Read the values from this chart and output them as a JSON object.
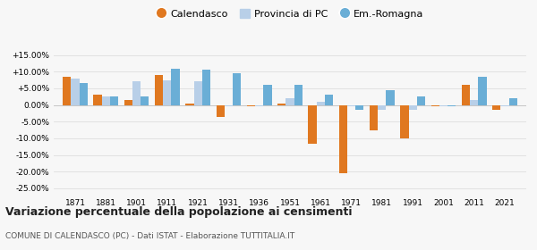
{
  "years": [
    1871,
    1881,
    1901,
    1911,
    1921,
    1931,
    1936,
    1951,
    1961,
    1971,
    1981,
    1991,
    2001,
    2011,
    2021
  ],
  "calendasco": [
    8.5,
    3.0,
    1.5,
    9.0,
    0.5,
    -3.5,
    -0.5,
    0.5,
    -11.5,
    -20.5,
    -7.5,
    -10.0,
    -0.5,
    6.0,
    -1.5
  ],
  "provincia_pc": [
    8.0,
    2.5,
    7.0,
    7.5,
    7.0,
    -0.5,
    -0.5,
    2.0,
    1.0,
    -0.5,
    -1.5,
    -1.5,
    -0.5,
    1.5,
    -0.5
  ],
  "emilia_romagna": [
    6.5,
    2.5,
    2.5,
    11.0,
    10.5,
    9.5,
    6.0,
    6.0,
    3.0,
    -1.5,
    4.5,
    2.5,
    -0.5,
    8.5,
    2.0
  ],
  "color_calendasco": "#e07820",
  "color_provincia": "#b8cfe8",
  "color_emilia": "#6aaed6",
  "ylim": [
    -27,
    18
  ],
  "yticks": [
    -25,
    -20,
    -15,
    -10,
    -5,
    0,
    5,
    10,
    15
  ],
  "ytick_labels": [
    "-25.00%",
    "-20.00%",
    "-15.00%",
    "-10.00%",
    "-5.00%",
    "0.00%",
    "+5.00%",
    "+10.00%",
    "+15.00%"
  ],
  "title": "Variazione percentuale della popolazione ai censimenti",
  "subtitle": "COMUNE DI CALENDASCO (PC) - Dati ISTAT - Elaborazione TUTTITALIA.IT",
  "legend_labels": [
    "Calendasco",
    "Provincia di PC",
    "Em.-Romagna"
  ],
  "bar_width": 0.27,
  "background_color": "#f7f7f7"
}
